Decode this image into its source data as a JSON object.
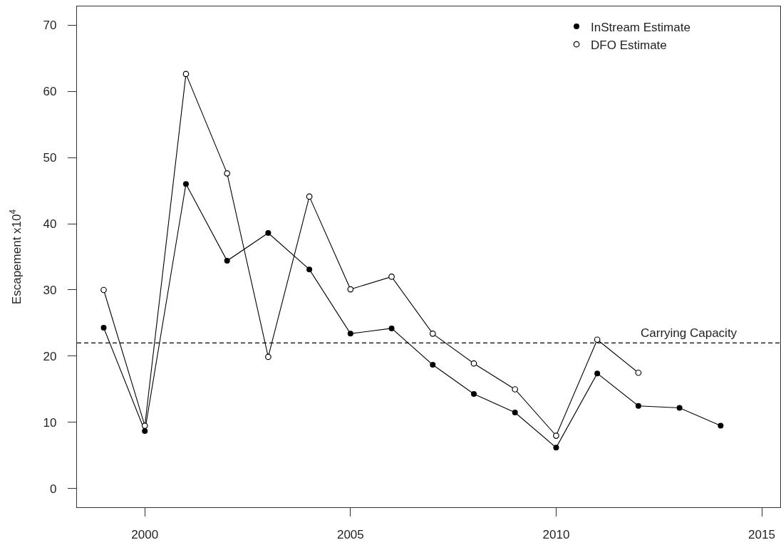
{
  "chart_data": {
    "type": "line",
    "ylabel": "Escapement x10$^{4}$",
    "x": [
      1999,
      2000,
      2001,
      2002,
      2003,
      2004,
      2005,
      2006,
      2007,
      2008,
      2009,
      2010,
      2011,
      2012,
      2013,
      2014
    ],
    "xlim": [
      1998.35,
      2015.45
    ],
    "xticks": [
      2000,
      2005,
      2010,
      2015
    ],
    "ylim": [
      -2.8,
      72.8
    ],
    "yticks": [
      0,
      10,
      20,
      30,
      40,
      50,
      60,
      70
    ],
    "grid": false,
    "legend": "top right",
    "marker": "circle",
    "line_style": "solid",
    "series": [
      {
        "name": "InStream Estimate",
        "color": "#000000",
        "values": [
          24.3,
          8.7,
          46.0,
          34.4,
          38.6,
          33.1,
          23.4,
          24.2,
          18.7,
          14.3,
          11.5,
          6.2,
          17.4,
          12.5,
          12.2,
          9.5
        ]
      },
      {
        "name": "DFO Estimate",
        "color": "#000000",
        "marker": "circle-open",
        "x": [
          1999,
          2000,
          2001,
          2002,
          2003,
          2004,
          2005,
          2006,
          2007,
          2008,
          2009,
          2010,
          2011,
          2012
        ],
        "values": [
          30.0,
          9.5,
          62.6,
          47.6,
          19.9,
          44.1,
          30.1,
          32.0,
          23.4,
          18.9,
          15.0,
          8.0,
          22.5,
          17.5
        ]
      }
    ],
    "ref_lines": [
      {
        "axis": "y",
        "value": 22,
        "label": "Carrying Capacity",
        "line_style": "dashed",
        "color": "#000000"
      }
    ]
  }
}
